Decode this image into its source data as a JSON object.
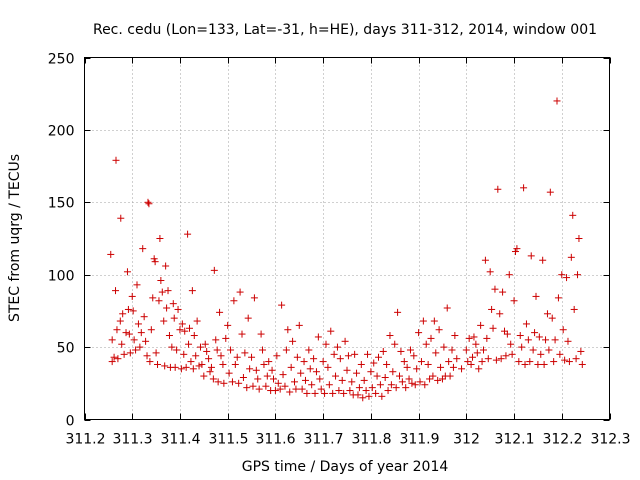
{
  "chart_data": {
    "type": "scatter",
    "title": "Rec. cedu (Lon=133, Lat=-31, h=HE), days 311-312, 2014, window 001",
    "xlabel": "GPS time / Days of year 2014",
    "ylabel": "STEC from uqrg / TECUs",
    "xlim": [
      311.2,
      312.3
    ],
    "ylim": [
      0,
      250
    ],
    "xticks": [
      "311.2",
      "311.3",
      "311.4",
      "311.5",
      "311.6",
      "311.7",
      "311.8",
      "311.9",
      "312",
      "312.1",
      "312.2",
      "312.3"
    ],
    "yticks": [
      "0",
      "50",
      "100",
      "150",
      "200",
      "250"
    ],
    "grid": true,
    "marker_color": "#cc0000",
    "points": [
      [
        311.255,
        114
      ],
      [
        311.258,
        55
      ],
      [
        311.258,
        40
      ],
      [
        311.262,
        43
      ],
      [
        311.265,
        89
      ],
      [
        311.266,
        179
      ],
      [
        311.268,
        62
      ],
      [
        311.27,
        42
      ],
      [
        311.275,
        68
      ],
      [
        311.276,
        139
      ],
      [
        311.278,
        52
      ],
      [
        311.28,
        73
      ],
      [
        311.283,
        45
      ],
      [
        311.287,
        60
      ],
      [
        311.29,
        102
      ],
      [
        311.292,
        76
      ],
      [
        311.294,
        59
      ],
      [
        311.296,
        46
      ],
      [
        311.3,
        85
      ],
      [
        311.302,
        75
      ],
      [
        311.304,
        55
      ],
      [
        311.307,
        48
      ],
      [
        311.31,
        93
      ],
      [
        311.313,
        66
      ],
      [
        311.316,
        50
      ],
      [
        311.319,
        60
      ],
      [
        311.322,
        118
      ],
      [
        311.325,
        71
      ],
      [
        311.328,
        54
      ],
      [
        311.331,
        44
      ],
      [
        311.333,
        150
      ],
      [
        311.335,
        149
      ],
      [
        311.337,
        40
      ],
      [
        311.34,
        62
      ],
      [
        311.343,
        84
      ],
      [
        311.346,
        111
      ],
      [
        311.348,
        109
      ],
      [
        311.35,
        46
      ],
      [
        311.353,
        38
      ],
      [
        311.356,
        82
      ],
      [
        311.358,
        125
      ],
      [
        311.36,
        96
      ],
      [
        311.363,
        88
      ],
      [
        311.366,
        68
      ],
      [
        311.368,
        37
      ],
      [
        311.37,
        106
      ],
      [
        311.372,
        77
      ],
      [
        311.375,
        89
      ],
      [
        311.378,
        58
      ],
      [
        311.38,
        36
      ],
      [
        311.383,
        50
      ],
      [
        311.386,
        80
      ],
      [
        311.388,
        70
      ],
      [
        311.39,
        36
      ],
      [
        311.393,
        48
      ],
      [
        311.396,
        76
      ],
      [
        311.4,
        62
      ],
      [
        311.403,
        35
      ],
      [
        311.405,
        66
      ],
      [
        311.408,
        45
      ],
      [
        311.41,
        61
      ],
      [
        311.413,
        36
      ],
      [
        311.416,
        128
      ],
      [
        311.418,
        52
      ],
      [
        311.42,
        63
      ],
      [
        311.423,
        40
      ],
      [
        311.426,
        89
      ],
      [
        311.428,
        35
      ],
      [
        311.43,
        58
      ],
      [
        311.433,
        44
      ],
      [
        311.436,
        68
      ],
      [
        311.44,
        37
      ],
      [
        311.443,
        50
      ],
      [
        311.446,
        38
      ],
      [
        311.45,
        30
      ],
      [
        311.453,
        52
      ],
      [
        311.456,
        47
      ],
      [
        311.46,
        42
      ],
      [
        311.463,
        33
      ],
      [
        311.466,
        36
      ],
      [
        311.47,
        28
      ],
      [
        311.472,
        103
      ],
      [
        311.475,
        55
      ],
      [
        311.478,
        48
      ],
      [
        311.48,
        26
      ],
      [
        311.483,
        74
      ],
      [
        311.486,
        44
      ],
      [
        311.49,
        38
      ],
      [
        311.492,
        25
      ],
      [
        311.496,
        56
      ],
      [
        311.5,
        65
      ],
      [
        311.503,
        32
      ],
      [
        311.506,
        48
      ],
      [
        311.51,
        26
      ],
      [
        311.513,
        82
      ],
      [
        311.516,
        38
      ],
      [
        311.52,
        43
      ],
      [
        311.523,
        25
      ],
      [
        311.526,
        88
      ],
      [
        311.53,
        59
      ],
      [
        311.533,
        29
      ],
      [
        311.536,
        46
      ],
      [
        311.54,
        22
      ],
      [
        311.543,
        70
      ],
      [
        311.546,
        35
      ],
      [
        311.55,
        43
      ],
      [
        311.553,
        23
      ],
      [
        311.556,
        84
      ],
      [
        311.56,
        34
      ],
      [
        311.563,
        28
      ],
      [
        311.566,
        21
      ],
      [
        311.57,
        59
      ],
      [
        311.573,
        48
      ],
      [
        311.576,
        38
      ],
      [
        311.58,
        23
      ],
      [
        311.583,
        30
      ],
      [
        311.586,
        40
      ],
      [
        311.59,
        20
      ],
      [
        311.593,
        34
      ],
      [
        311.596,
        28
      ],
      [
        311.6,
        20
      ],
      [
        311.603,
        44
      ],
      [
        311.606,
        25
      ],
      [
        311.61,
        21
      ],
      [
        311.613,
        79
      ],
      [
        311.616,
        31
      ],
      [
        311.62,
        23
      ],
      [
        311.623,
        48
      ],
      [
        311.626,
        62
      ],
      [
        311.63,
        19
      ],
      [
        311.633,
        36
      ],
      [
        311.636,
        54
      ],
      [
        311.64,
        26
      ],
      [
        311.643,
        21
      ],
      [
        311.646,
        43
      ],
      [
        311.65,
        65
      ],
      [
        311.653,
        32
      ],
      [
        311.656,
        21
      ],
      [
        311.66,
        40
      ],
      [
        311.663,
        27
      ],
      [
        311.666,
        18
      ],
      [
        311.67,
        48
      ],
      [
        311.673,
        35
      ],
      [
        311.676,
        24
      ],
      [
        311.68,
        42
      ],
      [
        311.683,
        18
      ],
      [
        311.686,
        33
      ],
      [
        311.69,
        57
      ],
      [
        311.693,
        28
      ],
      [
        311.696,
        21
      ],
      [
        311.7,
        40
      ],
      [
        311.703,
        18
      ],
      [
        311.706,
        52
      ],
      [
        311.71,
        36
      ],
      [
        311.713,
        24
      ],
      [
        311.716,
        61
      ],
      [
        311.72,
        18
      ],
      [
        311.723,
        45
      ],
      [
        311.726,
        30
      ],
      [
        311.73,
        50
      ],
      [
        311.733,
        20
      ],
      [
        311.736,
        42
      ],
      [
        311.74,
        27
      ],
      [
        311.743,
        18
      ],
      [
        311.746,
        54
      ],
      [
        311.75,
        34
      ],
      [
        311.753,
        44
      ],
      [
        311.756,
        20
      ],
      [
        311.76,
        26
      ],
      [
        311.763,
        17
      ],
      [
        311.766,
        45
      ],
      [
        311.77,
        32
      ],
      [
        311.773,
        17
      ],
      [
        311.776,
        22
      ],
      [
        311.78,
        38
      ],
      [
        311.783,
        15
      ],
      [
        311.786,
        27
      ],
      [
        311.79,
        20
      ],
      [
        311.793,
        45
      ],
      [
        311.796,
        16
      ],
      [
        311.8,
        33
      ],
      [
        311.803,
        22
      ],
      [
        311.806,
        39
      ],
      [
        311.81,
        18
      ],
      [
        311.813,
        30
      ],
      [
        311.816,
        43
      ],
      [
        311.82,
        24
      ],
      [
        311.823,
        16
      ],
      [
        311.826,
        47
      ],
      [
        311.83,
        29
      ],
      [
        311.833,
        38
      ],
      [
        311.836,
        20
      ],
      [
        311.84,
        58
      ],
      [
        311.843,
        24
      ],
      [
        311.846,
        33
      ],
      [
        311.85,
        52
      ],
      [
        311.853,
        22
      ],
      [
        311.856,
        74
      ],
      [
        311.86,
        30
      ],
      [
        311.863,
        47
      ],
      [
        311.866,
        26
      ],
      [
        311.87,
        40
      ],
      [
        311.873,
        22
      ],
      [
        311.876,
        36
      ],
      [
        311.88,
        28
      ],
      [
        311.883,
        48
      ],
      [
        311.886,
        25
      ],
      [
        311.89,
        44
      ],
      [
        311.893,
        24
      ],
      [
        311.896,
        35
      ],
      [
        311.9,
        60
      ],
      [
        311.903,
        26
      ],
      [
        311.906,
        40
      ],
      [
        311.91,
        68
      ],
      [
        311.913,
        24
      ],
      [
        311.916,
        52
      ],
      [
        311.92,
        38
      ],
      [
        311.923,
        28
      ],
      [
        311.926,
        56
      ],
      [
        311.93,
        30
      ],
      [
        311.933,
        68
      ],
      [
        311.936,
        46
      ],
      [
        311.94,
        27
      ],
      [
        311.943,
        62
      ],
      [
        311.946,
        36
      ],
      [
        311.95,
        28
      ],
      [
        311.953,
        50
      ],
      [
        311.956,
        30
      ],
      [
        311.96,
        77
      ],
      [
        311.963,
        40
      ],
      [
        311.966,
        30
      ],
      [
        311.97,
        48
      ],
      [
        311.973,
        36
      ],
      [
        311.976,
        58
      ],
      [
        311.98,
        42
      ],
      [
        311.99,
        35
      ],
      [
        312.0,
        48
      ],
      [
        312.003,
        40
      ],
      [
        312.006,
        56
      ],
      [
        312.01,
        38
      ],
      [
        312.013,
        43
      ],
      [
        312.016,
        57
      ],
      [
        312.02,
        52
      ],
      [
        312.023,
        46
      ],
      [
        312.026,
        35
      ],
      [
        312.03,
        65
      ],
      [
        312.033,
        40
      ],
      [
        312.036,
        48
      ],
      [
        312.04,
        110
      ],
      [
        312.043,
        56
      ],
      [
        312.046,
        42
      ],
      [
        312.05,
        102
      ],
      [
        312.053,
        76
      ],
      [
        312.056,
        63
      ],
      [
        312.06,
        90
      ],
      [
        312.063,
        41
      ],
      [
        312.066,
        159
      ],
      [
        312.07,
        73
      ],
      [
        312.073,
        42
      ],
      [
        312.076,
        88
      ],
      [
        312.08,
        61
      ],
      [
        312.083,
        44
      ],
      [
        312.086,
        59
      ],
      [
        312.09,
        100
      ],
      [
        312.093,
        52
      ],
      [
        312.096,
        45
      ],
      [
        312.1,
        82
      ],
      [
        312.103,
        116
      ],
      [
        312.106,
        118
      ],
      [
        312.11,
        40
      ],
      [
        312.113,
        58
      ],
      [
        312.116,
        50
      ],
      [
        312.12,
        160
      ],
      [
        312.123,
        38
      ],
      [
        312.126,
        66
      ],
      [
        312.13,
        55
      ],
      [
        312.133,
        40
      ],
      [
        312.136,
        113
      ],
      [
        312.14,
        48
      ],
      [
        312.143,
        60
      ],
      [
        312.146,
        85
      ],
      [
        312.15,
        38
      ],
      [
        312.153,
        57
      ],
      [
        312.156,
        45
      ],
      [
        312.16,
        110
      ],
      [
        312.163,
        38
      ],
      [
        312.166,
        55
      ],
      [
        312.17,
        73
      ],
      [
        312.173,
        48
      ],
      [
        312.176,
        157
      ],
      [
        312.18,
        70
      ],
      [
        312.183,
        40
      ],
      [
        312.186,
        55
      ],
      [
        312.19,
        220
      ],
      [
        312.193,
        84
      ],
      [
        312.196,
        45
      ],
      [
        312.2,
        100
      ],
      [
        312.203,
        62
      ],
      [
        312.206,
        41
      ],
      [
        312.21,
        98
      ],
      [
        312.213,
        54
      ],
      [
        312.216,
        40
      ],
      [
        312.22,
        112
      ],
      [
        312.223,
        141
      ],
      [
        312.226,
        76
      ],
      [
        312.23,
        42
      ],
      [
        312.233,
        100
      ],
      [
        312.236,
        125
      ],
      [
        312.24,
        47
      ],
      [
        312.243,
        38
      ]
    ]
  }
}
